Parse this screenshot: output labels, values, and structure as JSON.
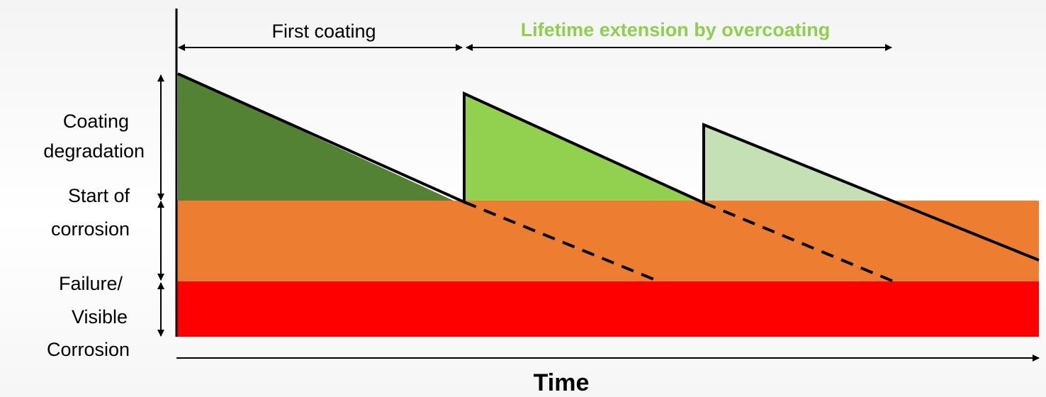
{
  "header": {
    "first_coating": "First coating",
    "lifetime_extension": "Lifetime extension by overcoating"
  },
  "axis": {
    "time": "Time"
  },
  "zones": [
    {
      "key": "degradation",
      "lines": [
        "Coating",
        "degradation"
      ]
    },
    {
      "key": "corrosion_start",
      "lines": [
        "Start of",
        "corrosion"
      ]
    },
    {
      "key": "failure",
      "lines": [
        "Failure/",
        "Visible",
        "Corrosion"
      ]
    }
  ],
  "colors": {
    "first_coating": "#548235",
    "overcoat_1": "#92d050",
    "overcoat_2": "#c5e0b4",
    "corrosion_zone": "#ed7d31",
    "failure_zone": "#ff0000",
    "lifetime_text": "#8fcf4f",
    "lines": "#000000"
  }
}
